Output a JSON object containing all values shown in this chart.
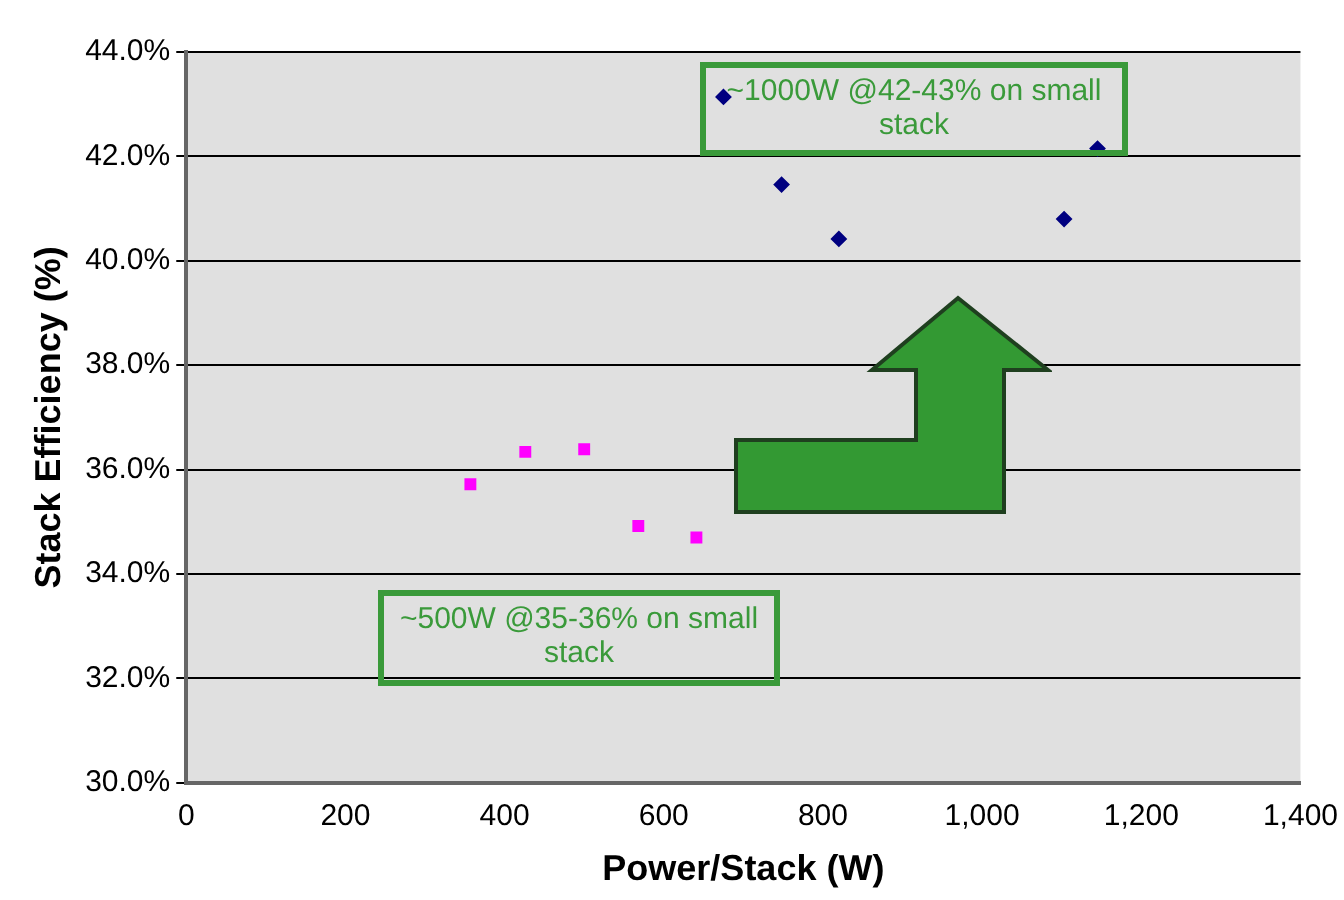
{
  "chart_data": {
    "type": "scatter",
    "xlabel": "Power/Stack (W)",
    "ylabel": "Stack Efficiency (%)",
    "xlim": [
      0,
      1400
    ],
    "ylim": [
      30,
      44
    ],
    "xticks": [
      0,
      200,
      400,
      600,
      800,
      {
        "value": 1000,
        "label": "1,000"
      },
      {
        "value": 1200,
        "label": "1,200"
      },
      {
        "value": 1400,
        "label": "1,400"
      }
    ],
    "yticks": [
      {
        "value": 30,
        "label": "30.0%"
      },
      {
        "value": 32,
        "label": "32.0%"
      },
      {
        "value": 34,
        "label": "34.0%"
      },
      {
        "value": 36,
        "label": "36.0%"
      },
      {
        "value": 38,
        "label": "38.0%"
      },
      {
        "value": 40,
        "label": "40.0%"
      },
      {
        "value": 42,
        "label": "42.0%"
      },
      {
        "value": 44,
        "label": "44.0%"
      }
    ],
    "grid": "y",
    "legend": false,
    "series": [
      {
        "color": "#ff00ff",
        "marker": "square",
        "x": [
          357,
          426,
          500,
          568,
          641
        ],
        "values": [
          35.72,
          36.34,
          36.39,
          34.92,
          34.7
        ]
      },
      {
        "color": "#000080",
        "marker": "diamond",
        "x": [
          675,
          748,
          820,
          1103,
          1145
        ],
        "values": [
          43.14,
          41.46,
          40.42,
          40.8,
          42.15
        ]
      }
    ],
    "annotations": [
      "~1000W @42-43% on small stack",
      "~500W @35-36% on small stack"
    ]
  }
}
